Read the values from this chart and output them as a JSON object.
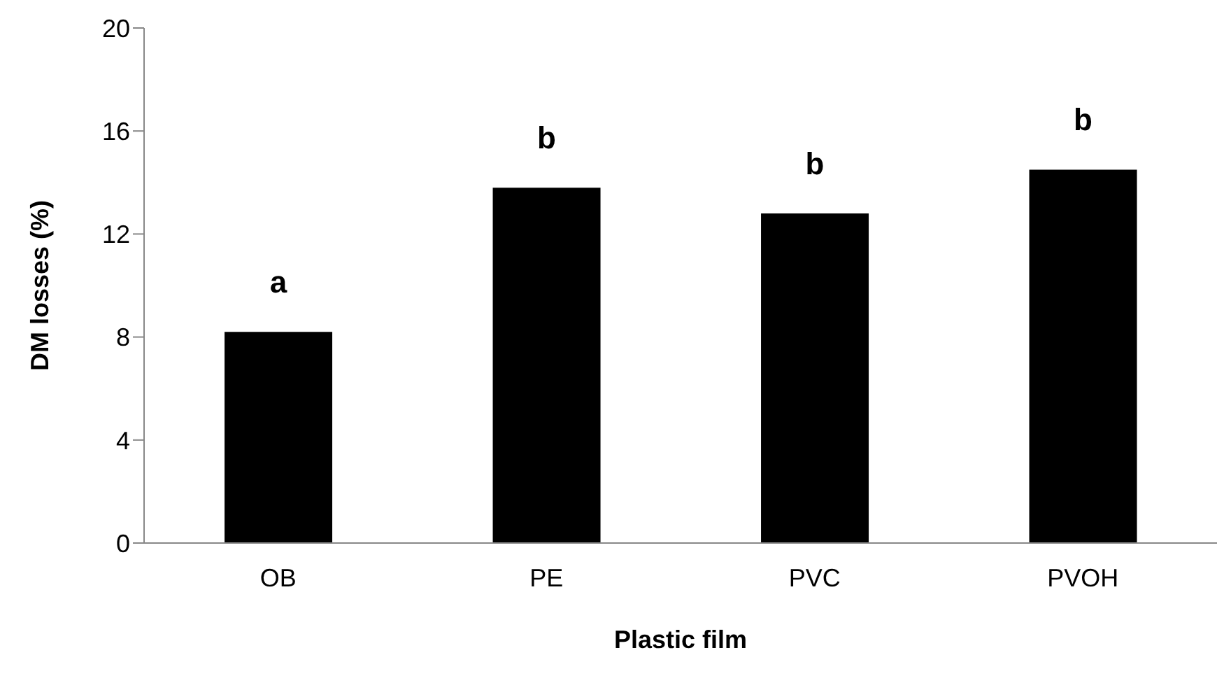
{
  "chart_data": {
    "type": "bar",
    "xlabel": "Plastic film",
    "ylabel": "DM losses  (%)",
    "categories": [
      "OB",
      "PE",
      "PVC",
      "PVOH"
    ],
    "values": [
      8.2,
      13.8,
      12.8,
      14.5
    ],
    "color": "#000000",
    "ylim": [
      0,
      20
    ],
    "yticks": [
      0,
      4,
      8,
      12,
      16,
      20
    ],
    "grid": false,
    "legend": false,
    "annotations": [
      "a",
      "b",
      "b",
      "b"
    ]
  }
}
